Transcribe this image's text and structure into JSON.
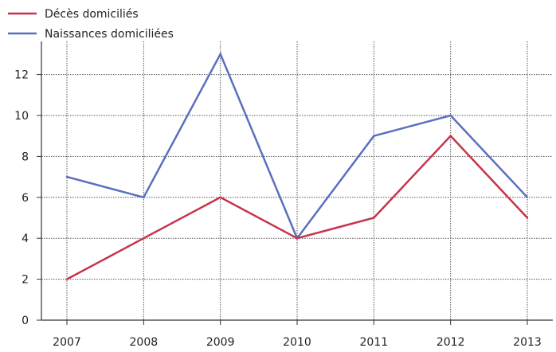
{
  "chart_data": {
    "type": "line",
    "categories": [
      "2007",
      "2008",
      "2009",
      "2010",
      "2011",
      "2012",
      "2013"
    ],
    "series": [
      {
        "name": "Décès domiciliés",
        "values": [
          2,
          4,
          6,
          4,
          5,
          9,
          5
        ],
        "color": "#c8334a"
      },
      {
        "name": "Naissances domiciliées",
        "values": [
          7,
          6,
          13,
          4,
          9,
          10,
          6
        ],
        "color": "#5b6fbe"
      }
    ],
    "y_ticks": [
      "0",
      "2",
      "4",
      "6",
      "8",
      "10",
      "12"
    ],
    "ylim": [
      0,
      13
    ],
    "grid": true,
    "legend": "top-left",
    "title": "",
    "xlabel": "",
    "ylabel": ""
  }
}
